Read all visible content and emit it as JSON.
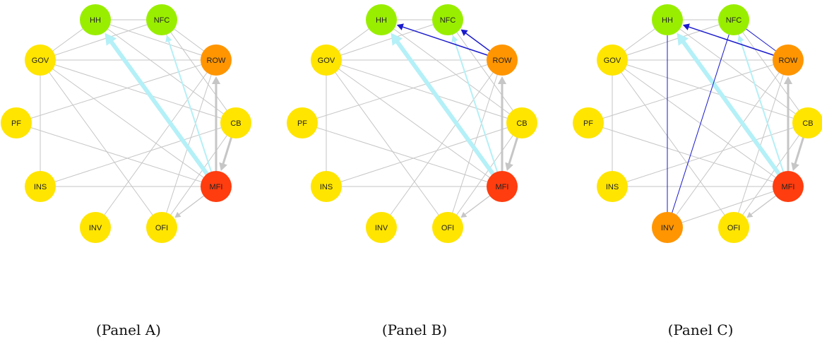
{
  "colors": {
    "green": "#99ee00",
    "yellow": "#ffe500",
    "orange": "#ff9500",
    "red": "#ff3d0f",
    "grey_edge": "#c6c6c6",
    "cyan_edge": "#b4f0f7",
    "blue_edge": "#1a1acc"
  },
  "nodes": [
    "HH",
    "NFC",
    "ROW",
    "CB",
    "MFI",
    "OFI",
    "INV",
    "INS",
    "PF",
    "GOV"
  ],
  "panels": [
    {
      "caption": "(Panel A)",
      "node_colors": {
        "HH": "green",
        "NFC": "green",
        "ROW": "orange",
        "CB": "yellow",
        "MFI": "red",
        "OFI": "yellow",
        "INV": "yellow",
        "INS": "yellow",
        "PF": "yellow",
        "GOV": "yellow"
      },
      "grey_edges": [
        [
          "HH",
          "NFC"
        ],
        [
          "HH",
          "ROW"
        ],
        [
          "HH",
          "CB"
        ],
        [
          "HH",
          "GOV"
        ],
        [
          "NFC",
          "ROW"
        ],
        [
          "NFC",
          "GOV"
        ],
        [
          "NFC",
          "CB"
        ],
        [
          "NFC",
          "MFI"
        ],
        [
          "GOV",
          "ROW"
        ],
        [
          "GOV",
          "CB"
        ],
        [
          "GOV",
          "INS"
        ],
        [
          "GOV",
          "MFI"
        ],
        [
          "GOV",
          "OFI"
        ],
        [
          "PF",
          "MFI"
        ],
        [
          "PF",
          "ROW"
        ],
        [
          "INS",
          "MFI"
        ],
        [
          "INS",
          "CB"
        ],
        [
          "INV",
          "ROW"
        ],
        [
          "OFI",
          "ROW"
        ],
        [
          "OFI",
          "CB"
        ]
      ],
      "arrow_edges": [
        {
          "from": "MFI",
          "to": "ROW",
          "style": "grey_thick"
        },
        {
          "from": "CB",
          "to": "MFI",
          "style": "grey_thick"
        },
        {
          "from": "MFI",
          "to": "OFI",
          "style": "grey"
        },
        {
          "from": "MFI",
          "to": "HH",
          "style": "cyan_thick"
        },
        {
          "from": "MFI",
          "to": "NFC",
          "style": "cyan"
        }
      ]
    },
    {
      "caption": "(Panel B)",
      "node_colors": {
        "HH": "green",
        "NFC": "green",
        "ROW": "orange",
        "CB": "yellow",
        "MFI": "red",
        "OFI": "yellow",
        "INV": "yellow",
        "INS": "yellow",
        "PF": "yellow",
        "GOV": "yellow"
      },
      "grey_edges": [
        [
          "HH",
          "NFC"
        ],
        [
          "HH",
          "CB"
        ],
        [
          "HH",
          "GOV"
        ],
        [
          "NFC",
          "GOV"
        ],
        [
          "NFC",
          "CB"
        ],
        [
          "NFC",
          "MFI"
        ],
        [
          "GOV",
          "ROW"
        ],
        [
          "GOV",
          "CB"
        ],
        [
          "GOV",
          "INS"
        ],
        [
          "GOV",
          "MFI"
        ],
        [
          "GOV",
          "OFI"
        ],
        [
          "PF",
          "MFI"
        ],
        [
          "PF",
          "ROW"
        ],
        [
          "INS",
          "MFI"
        ],
        [
          "INS",
          "CB"
        ],
        [
          "INV",
          "ROW"
        ],
        [
          "OFI",
          "ROW"
        ],
        [
          "OFI",
          "CB"
        ]
      ],
      "arrow_edges": [
        {
          "from": "MFI",
          "to": "ROW",
          "style": "grey_thick"
        },
        {
          "from": "CB",
          "to": "MFI",
          "style": "grey_thick"
        },
        {
          "from": "MFI",
          "to": "OFI",
          "style": "grey"
        },
        {
          "from": "MFI",
          "to": "HH",
          "style": "cyan_thick"
        },
        {
          "from": "MFI",
          "to": "NFC",
          "style": "cyan"
        },
        {
          "from": "ROW",
          "to": "HH",
          "style": "blue"
        },
        {
          "from": "ROW",
          "to": "NFC",
          "style": "blue"
        }
      ]
    },
    {
      "caption": "(Panel C)",
      "node_colors": {
        "HH": "green",
        "NFC": "green",
        "ROW": "orange",
        "CB": "yellow",
        "MFI": "red",
        "OFI": "yellow",
        "INV": "orange",
        "INS": "yellow",
        "PF": "yellow",
        "GOV": "yellow"
      },
      "grey_edges": [
        [
          "HH",
          "NFC"
        ],
        [
          "HH",
          "CB"
        ],
        [
          "HH",
          "GOV"
        ],
        [
          "NFC",
          "GOV"
        ],
        [
          "NFC",
          "CB"
        ],
        [
          "NFC",
          "MFI"
        ],
        [
          "GOV",
          "ROW"
        ],
        [
          "GOV",
          "CB"
        ],
        [
          "GOV",
          "INS"
        ],
        [
          "GOV",
          "MFI"
        ],
        [
          "GOV",
          "OFI"
        ],
        [
          "PF",
          "MFI"
        ],
        [
          "PF",
          "ROW"
        ],
        [
          "INS",
          "MFI"
        ],
        [
          "INS",
          "CB"
        ],
        [
          "INV",
          "ROW"
        ],
        [
          "INV",
          "MFI"
        ],
        [
          "OFI",
          "ROW"
        ],
        [
          "OFI",
          "CB"
        ]
      ],
      "arrow_edges": [
        {
          "from": "MFI",
          "to": "ROW",
          "style": "grey_thick"
        },
        {
          "from": "CB",
          "to": "MFI",
          "style": "grey_thick"
        },
        {
          "from": "MFI",
          "to": "OFI",
          "style": "grey"
        },
        {
          "from": "MFI",
          "to": "HH",
          "style": "cyan_thick"
        },
        {
          "from": "MFI",
          "to": "NFC",
          "style": "cyan"
        },
        {
          "from": "ROW",
          "to": "HH",
          "style": "blue"
        },
        {
          "from": "NFC",
          "to": "ROW",
          "style": "blue_line"
        },
        {
          "from": "INV",
          "to": "HH",
          "style": "blue_line"
        },
        {
          "from": "INV",
          "to": "NFC",
          "style": "blue_line"
        }
      ]
    }
  ]
}
